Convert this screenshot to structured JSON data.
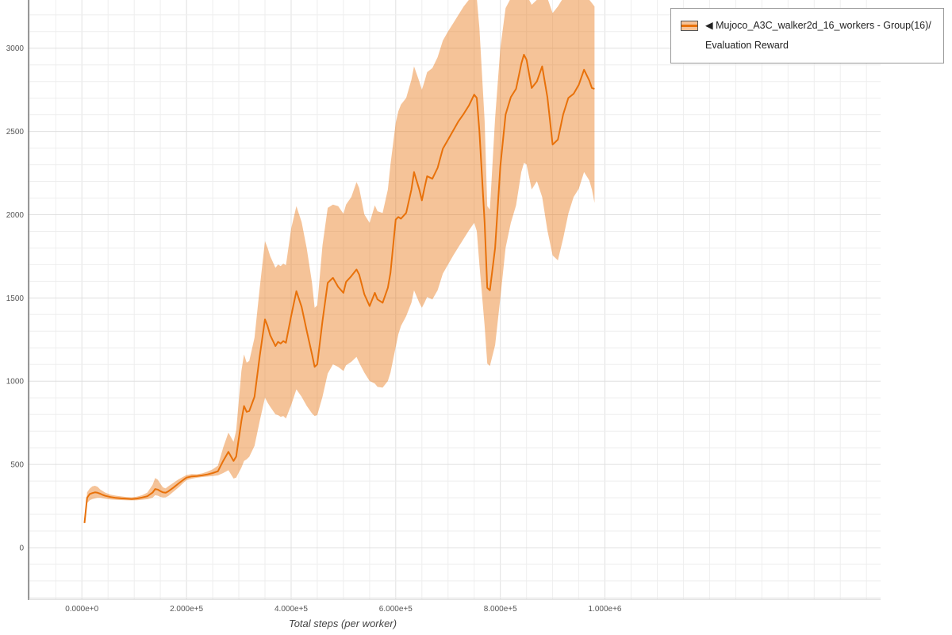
{
  "legend": {
    "label": "◀ Mujoco_A3C_walker2d_16_workers - Group(16)/Evaluation Reward"
  },
  "chart_data": {
    "type": "line",
    "title": "",
    "xlabel": "Total steps (per worker)",
    "ylabel": "",
    "xlim": [
      -102000,
      1527000
    ],
    "ylim": [
      -310,
      3280
    ],
    "grid": {
      "on": true,
      "x_minor_step": 50000,
      "y_minor_step": 100
    },
    "legend_position": "top-right",
    "xticks": {
      "values": [
        0,
        200000,
        400000,
        600000,
        800000,
        1000000
      ],
      "labels": [
        "0.000e+0",
        "2.000e+5",
        "4.000e+5",
        "6.000e+5",
        "8.000e+5",
        "1.000e+6"
      ]
    },
    "yticks": {
      "values": [
        0,
        500,
        1000,
        1500,
        2000,
        2500,
        3000
      ],
      "labels": [
        "0",
        "500",
        "1000",
        "1500",
        "2000",
        "2500",
        "3000"
      ]
    },
    "series": [
      {
        "name": "Mujoco_A3C_walker2d_16_workers - Group(16)/Evaluation Reward",
        "color": "#e8710a",
        "band_opacity": 0.42,
        "points_format": [
          "x",
          "lower",
          "mean",
          "upper"
        ],
        "points": [
          [
            5000,
            140,
            148,
            158
          ],
          [
            10000,
            268,
            300,
            332
          ],
          [
            15000,
            285,
            322,
            355
          ],
          [
            20000,
            292,
            328,
            368
          ],
          [
            25000,
            296,
            332,
            372
          ],
          [
            30000,
            300,
            330,
            366
          ],
          [
            35000,
            300,
            324,
            350
          ],
          [
            40000,
            297,
            317,
            340
          ],
          [
            45000,
            294,
            311,
            330
          ],
          [
            55000,
            290,
            304,
            318
          ],
          [
            65000,
            288,
            299,
            312
          ],
          [
            75000,
            286,
            296,
            308
          ],
          [
            85000,
            285,
            294,
            304
          ],
          [
            95000,
            284,
            292,
            302
          ],
          [
            105000,
            285,
            295,
            306
          ],
          [
            115000,
            288,
            301,
            315
          ],
          [
            125000,
            291,
            309,
            331
          ],
          [
            135000,
            300,
            331,
            377
          ],
          [
            140000,
            315,
            352,
            418
          ],
          [
            145000,
            312,
            349,
            409
          ],
          [
            150000,
            305,
            340,
            384
          ],
          [
            155000,
            301,
            332,
            362
          ],
          [
            160000,
            302,
            330,
            356
          ],
          [
            165000,
            310,
            338,
            368
          ],
          [
            175000,
            336,
            361,
            390
          ],
          [
            185000,
            362,
            386,
            411
          ],
          [
            195000,
            392,
            410,
            428
          ],
          [
            200000,
            405,
            421,
            436
          ],
          [
            210000,
            414,
            428,
            442
          ],
          [
            220000,
            420,
            430,
            441
          ],
          [
            230000,
            424,
            434,
            446
          ],
          [
            240000,
            427,
            440,
            457
          ],
          [
            250000,
            430,
            448,
            471
          ],
          [
            260000,
            434,
            459,
            493
          ],
          [
            270000,
            448,
            521,
            601
          ],
          [
            280000,
            465,
            576,
            691
          ],
          [
            290000,
            415,
            521,
            636
          ],
          [
            295000,
            421,
            547,
            703
          ],
          [
            305000,
            481,
            762,
            1062
          ],
          [
            310000,
            521,
            851,
            1161
          ],
          [
            315000,
            531,
            816,
            1111
          ],
          [
            320000,
            546,
            821,
            1121
          ],
          [
            330000,
            611,
            906,
            1261
          ],
          [
            340000,
            761,
            1151,
            1561
          ],
          [
            350000,
            901,
            1371,
            1841
          ],
          [
            355000,
            871,
            1331,
            1801
          ],
          [
            360000,
            846,
            1276,
            1751
          ],
          [
            370000,
            801,
            1211,
            1681
          ],
          [
            375000,
            796,
            1236,
            1701
          ],
          [
            380000,
            786,
            1226,
            1691
          ],
          [
            385000,
            791,
            1241,
            1706
          ],
          [
            390000,
            776,
            1231,
            1696
          ],
          [
            400000,
            856,
            1391,
            1916
          ],
          [
            410000,
            951,
            1541,
            2051
          ],
          [
            420000,
            906,
            1446,
            1956
          ],
          [
            430000,
            851,
            1301,
            1796
          ],
          [
            440000,
            806,
            1161,
            1591
          ],
          [
            445000,
            791,
            1086,
            1441
          ],
          [
            450000,
            796,
            1101,
            1456
          ],
          [
            460000,
            906,
            1361,
            1816
          ],
          [
            470000,
            1046,
            1591,
            2041
          ],
          [
            480000,
            1101,
            1621,
            2061
          ],
          [
            490000,
            1086,
            1566,
            2051
          ],
          [
            500000,
            1061,
            1531,
            2006
          ],
          [
            505000,
            1096,
            1596,
            2061
          ],
          [
            515000,
            1116,
            1631,
            2106
          ],
          [
            525000,
            1146,
            1671,
            2196
          ],
          [
            530000,
            1111,
            1641,
            2161
          ],
          [
            540000,
            1051,
            1521,
            2001
          ],
          [
            550000,
            1001,
            1451,
            1951
          ],
          [
            560000,
            986,
            1531,
            2056
          ],
          [
            565000,
            966,
            1491,
            2021
          ],
          [
            575000,
            961,
            1471,
            2011
          ],
          [
            585000,
            1001,
            1561,
            2151
          ],
          [
            590000,
            1051,
            1651,
            2301
          ],
          [
            600000,
            1206,
            1971,
            2551
          ],
          [
            605000,
            1281,
            1986,
            2621
          ],
          [
            610000,
            1331,
            1976,
            2661
          ],
          [
            620000,
            1391,
            2011,
            2701
          ],
          [
            630000,
            1471,
            2151,
            2811
          ],
          [
            635000,
            1546,
            2256,
            2891
          ],
          [
            645000,
            1471,
            2151,
            2801
          ],
          [
            650000,
            1441,
            2086,
            2751
          ],
          [
            655000,
            1471,
            2161,
            2801
          ],
          [
            660000,
            1506,
            2231,
            2856
          ],
          [
            670000,
            1491,
            2216,
            2881
          ],
          [
            680000,
            1546,
            2281,
            2946
          ],
          [
            690000,
            1646,
            2396,
            3046
          ],
          [
            700000,
            1701,
            2451,
            3101
          ],
          [
            710000,
            1756,
            2506,
            3151
          ],
          [
            720000,
            1806,
            2561,
            3201
          ],
          [
            730000,
            1856,
            2606,
            3251
          ],
          [
            740000,
            1906,
            2656,
            3291
          ],
          [
            750000,
            1951,
            2721,
            3311
          ],
          [
            755000,
            1901,
            2701,
            3301
          ],
          [
            760000,
            1701,
            2501,
            3121
          ],
          [
            770000,
            1331,
            1951,
            2561
          ],
          [
            775000,
            1106,
            1561,
            2051
          ],
          [
            780000,
            1091,
            1546,
            2031
          ],
          [
            790000,
            1216,
            1801,
            2581
          ],
          [
            800000,
            1501,
            2291,
            3001
          ],
          [
            810000,
            1801,
            2601,
            3241
          ],
          [
            820000,
            1951,
            2706,
            3301
          ],
          [
            830000,
            2056,
            2756,
            3311
          ],
          [
            840000,
            2256,
            2906,
            3321
          ],
          [
            845000,
            2311,
            2961,
            3331
          ],
          [
            850000,
            2301,
            2931,
            3321
          ],
          [
            860000,
            2151,
            2761,
            3261
          ],
          [
            870000,
            2201,
            2801,
            3291
          ],
          [
            880000,
            2106,
            2891,
            3311
          ],
          [
            890000,
            1906,
            2706,
            3301
          ],
          [
            900000,
            1756,
            2421,
            3211
          ],
          [
            910000,
            1726,
            2451,
            3251
          ],
          [
            920000,
            1856,
            2601,
            3301
          ],
          [
            930000,
            2006,
            2701,
            3311
          ],
          [
            940000,
            2106,
            2726,
            3316
          ],
          [
            950000,
            2156,
            2781,
            3321
          ],
          [
            960000,
            2256,
            2871,
            3331
          ],
          [
            970000,
            2206,
            2806,
            3291
          ],
          [
            975000,
            2151,
            2761,
            3271
          ],
          [
            980000,
            2071,
            2756,
            3251
          ]
        ]
      }
    ],
    "colors": {
      "grid_minor": "#eeeeee",
      "grid_major": "#e0e0e0",
      "axis": "#333333",
      "tick_text": "#555555"
    }
  }
}
